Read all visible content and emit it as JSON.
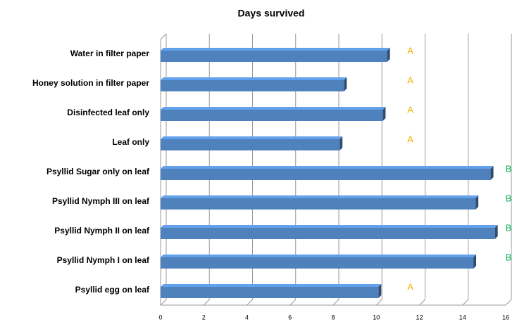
{
  "chart_data": {
    "type": "bar",
    "orientation": "horizontal",
    "title": "Days survived",
    "categories": [
      "Water in filter paper",
      "Honey solution in filter paper",
      "Disinfected leaf only",
      "Leaf only",
      "Psyllid Sugar only on leaf",
      "Psyllid Nymph III on leaf",
      "Psyllid Nymph II on leaf",
      "Psyllid Nymph I on leaf",
      "Psyllid egg on leaf"
    ],
    "values": [
      10.5,
      8.5,
      10.3,
      8.3,
      15.3,
      14.6,
      15.5,
      14.5,
      10.1
    ],
    "color": "#4f81bd",
    "xlim": [
      0,
      16
    ],
    "xticks": [
      0,
      2,
      4,
      6,
      8,
      10,
      12,
      14,
      16
    ],
    "grid": true,
    "annotations": [
      {
        "text": "A",
        "color": "#f0b000"
      },
      {
        "text": "A",
        "color": "#f0b000"
      },
      {
        "text": "A",
        "color": "#f0b000"
      },
      {
        "text": "A",
        "color": "#f0b000"
      },
      {
        "text": "B",
        "color": "#00b050"
      },
      {
        "text": "B",
        "color": "#00b050"
      },
      {
        "text": "B",
        "color": "#00b050"
      },
      {
        "text": "B",
        "color": "#00b050"
      },
      {
        "text": "A",
        "color": "#f0b000"
      }
    ]
  }
}
